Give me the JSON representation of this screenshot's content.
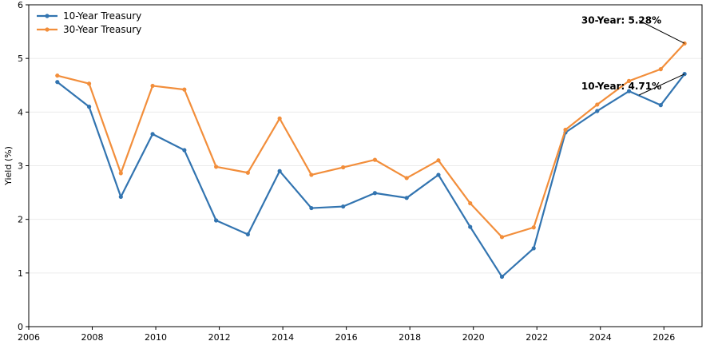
{
  "chart_data": {
    "type": "line",
    "title": "",
    "xlabel": "",
    "ylabel": "Yield (%)",
    "xlim": [
      2006,
      2027.2
    ],
    "ylim": [
      0,
      6
    ],
    "x_ticks": [
      2006,
      2008,
      2010,
      2012,
      2014,
      2016,
      2018,
      2020,
      2022,
      2024,
      2026
    ],
    "y_ticks": [
      0,
      1,
      2,
      3,
      4,
      5,
      6
    ],
    "grid": "horizontal",
    "legend_position": "top-left",
    "series": [
      {
        "name": "10-Year Treasury",
        "color": "#3274b0",
        "x": [
          2006.9,
          2007.9,
          2008.9,
          2009.9,
          2010.9,
          2011.9,
          2012.9,
          2013.9,
          2014.9,
          2015.9,
          2016.9,
          2017.9,
          2018.9,
          2019.9,
          2020.9,
          2021.9,
          2022.9,
          2023.9,
          2024.9,
          2025.9,
          2026.65
        ],
        "values": [
          4.56,
          4.1,
          2.42,
          3.59,
          3.29,
          1.98,
          1.72,
          2.9,
          2.21,
          2.24,
          2.49,
          2.4,
          2.83,
          1.86,
          0.93,
          1.46,
          3.62,
          4.02,
          4.39,
          4.13,
          4.71
        ]
      },
      {
        "name": "30-Year Treasury",
        "color": "#f28e3b",
        "x": [
          2006.9,
          2007.9,
          2008.9,
          2009.9,
          2010.9,
          2011.9,
          2012.9,
          2013.9,
          2014.9,
          2015.9,
          2016.9,
          2017.9,
          2018.9,
          2019.9,
          2020.9,
          2021.9,
          2022.9,
          2023.9,
          2024.9,
          2025.9,
          2026.65
        ],
        "values": [
          4.68,
          4.53,
          2.86,
          4.49,
          4.42,
          2.98,
          2.87,
          3.88,
          2.83,
          2.97,
          3.11,
          2.77,
          3.1,
          2.3,
          1.67,
          1.85,
          3.67,
          4.14,
          4.58,
          4.8,
          5.28
        ]
      }
    ],
    "annotations": [
      {
        "text": "30-Year: 5.28%",
        "series_index": 1,
        "point_index": 20,
        "text_x": 2023.4,
        "text_y": 5.65
      },
      {
        "text": "10-Year: 4.71%",
        "series_index": 0,
        "point_index": 20,
        "text_x": 2023.4,
        "text_y": 4.42
      }
    ]
  }
}
